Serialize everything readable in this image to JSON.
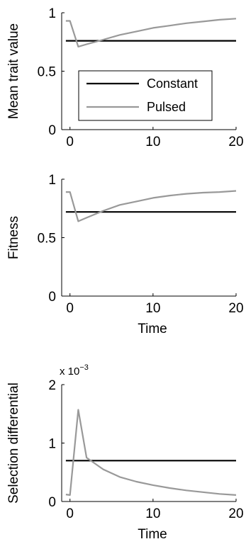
{
  "chart_data": [
    {
      "type": "line",
      "xlabel": "",
      "ylabel": "Mean trait value",
      "xlim": [
        -1,
        20
      ],
      "ylim": [
        0,
        1
      ],
      "xticks": [
        "0",
        "10",
        "20"
      ],
      "yticks": [
        "0",
        "0.5",
        "1"
      ],
      "legend": {
        "location": "center-left",
        "entries": [
          "Constant",
          "Pulsed"
        ]
      },
      "series": [
        {
          "name": "Constant",
          "color": "#000000",
          "x": [
            -0.5,
            20
          ],
          "y": [
            0.76,
            0.76
          ]
        },
        {
          "name": "Pulsed",
          "color": "#999999",
          "x": [
            -0.5,
            0,
            1,
            2,
            3,
            4,
            6,
            8,
            10,
            12,
            14,
            16,
            18,
            20
          ],
          "y": [
            0.93,
            0.93,
            0.71,
            0.73,
            0.75,
            0.77,
            0.81,
            0.84,
            0.87,
            0.89,
            0.91,
            0.925,
            0.94,
            0.95
          ]
        }
      ]
    },
    {
      "type": "line",
      "xlabel": "Time",
      "ylabel": "Fitness",
      "xlim": [
        -1,
        20
      ],
      "ylim": [
        0,
        1
      ],
      "xticks": [
        "0",
        "10",
        "20"
      ],
      "yticks": [
        "0",
        "0.5",
        "1"
      ],
      "series": [
        {
          "name": "Constant",
          "color": "#000000",
          "x": [
            -0.5,
            20
          ],
          "y": [
            0.72,
            0.72
          ]
        },
        {
          "name": "Pulsed",
          "color": "#999999",
          "x": [
            -0.5,
            0,
            1,
            2,
            3,
            4,
            6,
            8,
            10,
            12,
            14,
            16,
            18,
            20
          ],
          "y": [
            0.89,
            0.89,
            0.64,
            0.67,
            0.7,
            0.73,
            0.78,
            0.81,
            0.84,
            0.86,
            0.875,
            0.885,
            0.89,
            0.9
          ]
        }
      ]
    },
    {
      "type": "line",
      "xlabel": "Time",
      "ylabel": "Selection differential",
      "xlim": [
        -1,
        20
      ],
      "ylim": [
        0,
        2
      ],
      "xticks": [
        "0",
        "10",
        "20"
      ],
      "yticks": [
        "0",
        "1",
        "2"
      ],
      "multiplier_base": "x 10",
      "multiplier_exponent": "−3",
      "series": [
        {
          "name": "Constant",
          "color": "#000000",
          "x": [
            -0.5,
            20
          ],
          "y": [
            0.7,
            0.7
          ]
        },
        {
          "name": "Pulsed",
          "color": "#999999",
          "x": [
            -0.5,
            0,
            1,
            2,
            4,
            6,
            8,
            10,
            12,
            14,
            16,
            18,
            20
          ],
          "y": [
            0.12,
            0.11,
            1.57,
            0.75,
            0.55,
            0.42,
            0.34,
            0.28,
            0.23,
            0.19,
            0.16,
            0.13,
            0.11
          ]
        }
      ]
    }
  ]
}
